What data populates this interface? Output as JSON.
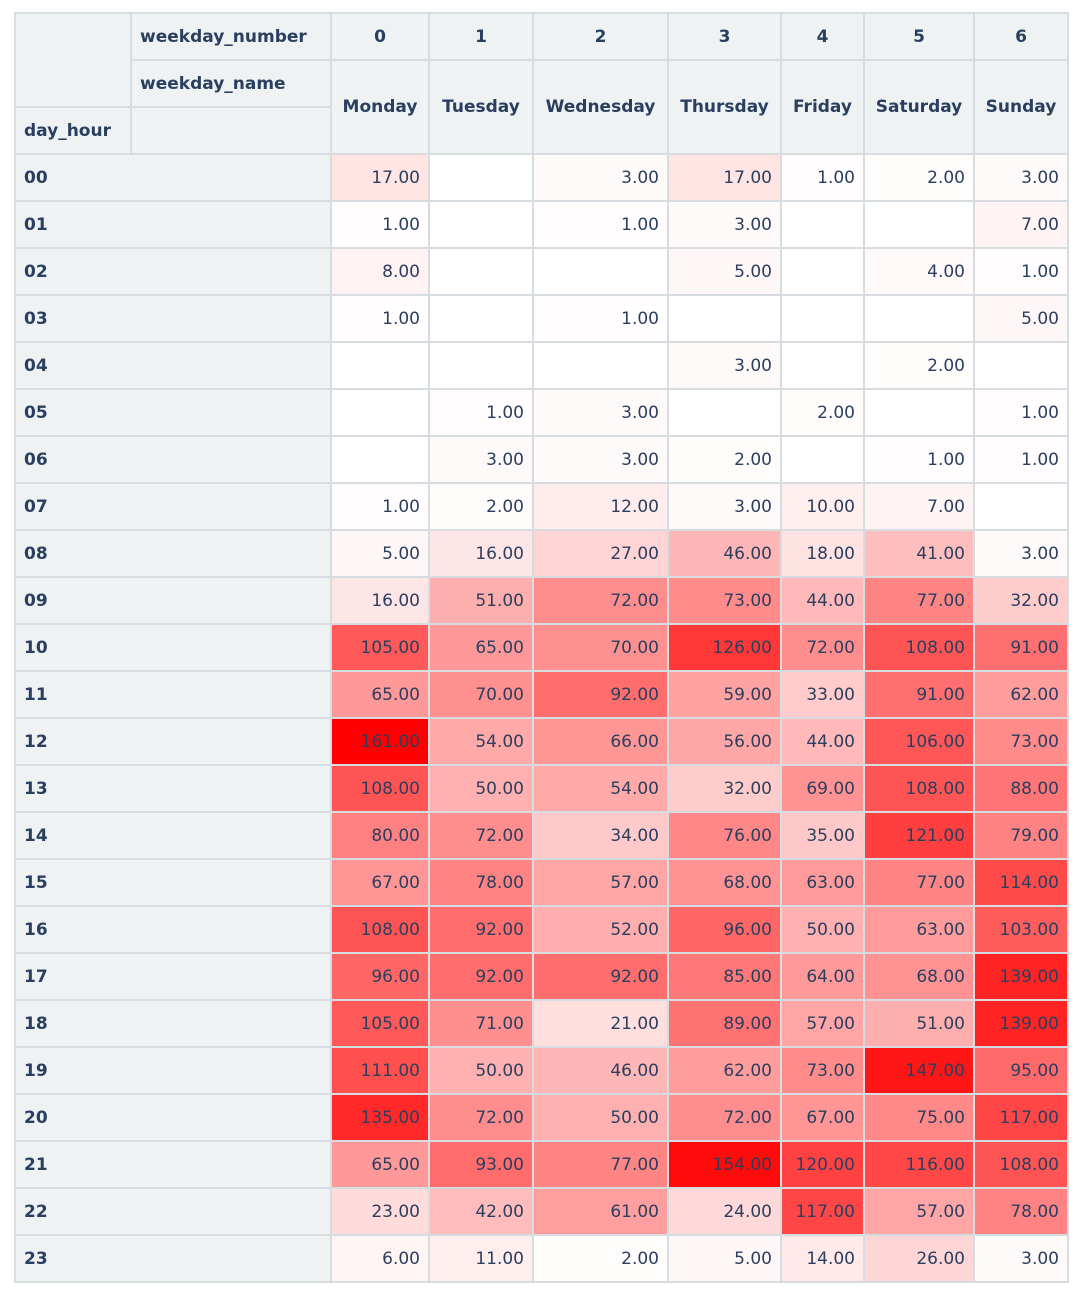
{
  "chart_data": {
    "type": "heatmap",
    "column_levels": [
      "weekday_number",
      "weekday_name"
    ],
    "columns": [
      {
        "number": "0",
        "name": "Monday"
      },
      {
        "number": "1",
        "name": "Tuesday"
      },
      {
        "number": "2",
        "name": "Wednesday"
      },
      {
        "number": "3",
        "name": "Thursday"
      },
      {
        "number": "4",
        "name": "Friday"
      },
      {
        "number": "5",
        "name": "Saturday"
      },
      {
        "number": "6",
        "name": "Sunday"
      }
    ],
    "index_name": "day_hour",
    "rows": [
      "00",
      "01",
      "02",
      "03",
      "04",
      "05",
      "06",
      "07",
      "08",
      "09",
      "10",
      "11",
      "12",
      "13",
      "14",
      "15",
      "16",
      "17",
      "18",
      "19",
      "20",
      "21",
      "22",
      "23"
    ],
    "values": [
      [
        17,
        null,
        3,
        17,
        1,
        2,
        3
      ],
      [
        1,
        null,
        1,
        3,
        null,
        null,
        7
      ],
      [
        8,
        null,
        null,
        5,
        null,
        4,
        1
      ],
      [
        1,
        null,
        1,
        null,
        null,
        null,
        5
      ],
      [
        null,
        null,
        null,
        3,
        null,
        2,
        null
      ],
      [
        null,
        1,
        3,
        null,
        2,
        null,
        1
      ],
      [
        null,
        3,
        3,
        2,
        null,
        1,
        1
      ],
      [
        1,
        2,
        12,
        3,
        10,
        7,
        null
      ],
      [
        5,
        16,
        27,
        46,
        18,
        41,
        3
      ],
      [
        16,
        51,
        72,
        73,
        44,
        77,
        32
      ],
      [
        105,
        65,
        70,
        126,
        72,
        108,
        91
      ],
      [
        65,
        70,
        92,
        59,
        33,
        91,
        62
      ],
      [
        161,
        54,
        66,
        56,
        44,
        106,
        73
      ],
      [
        108,
        50,
        54,
        32,
        69,
        108,
        88
      ],
      [
        80,
        72,
        34,
        76,
        35,
        121,
        79
      ],
      [
        67,
        78,
        57,
        68,
        63,
        77,
        114
      ],
      [
        108,
        92,
        52,
        96,
        50,
        63,
        103
      ],
      [
        96,
        92,
        92,
        85,
        64,
        68,
        139
      ],
      [
        105,
        71,
        21,
        89,
        57,
        51,
        139
      ],
      [
        111,
        50,
        46,
        62,
        73,
        147,
        95
      ],
      [
        135,
        72,
        50,
        72,
        67,
        75,
        117
      ],
      [
        65,
        93,
        77,
        154,
        120,
        116,
        108
      ],
      [
        23,
        42,
        61,
        24,
        117,
        57,
        78
      ],
      [
        6,
        11,
        2,
        5,
        14,
        26,
        3
      ]
    ],
    "value_format": "2 decimals",
    "color_low": "#ffffff",
    "color_high": "#ff0000",
    "header_bg": "#eef2f3",
    "border_color": "#d6dcdf",
    "text_color": "#2a3f5f"
  }
}
